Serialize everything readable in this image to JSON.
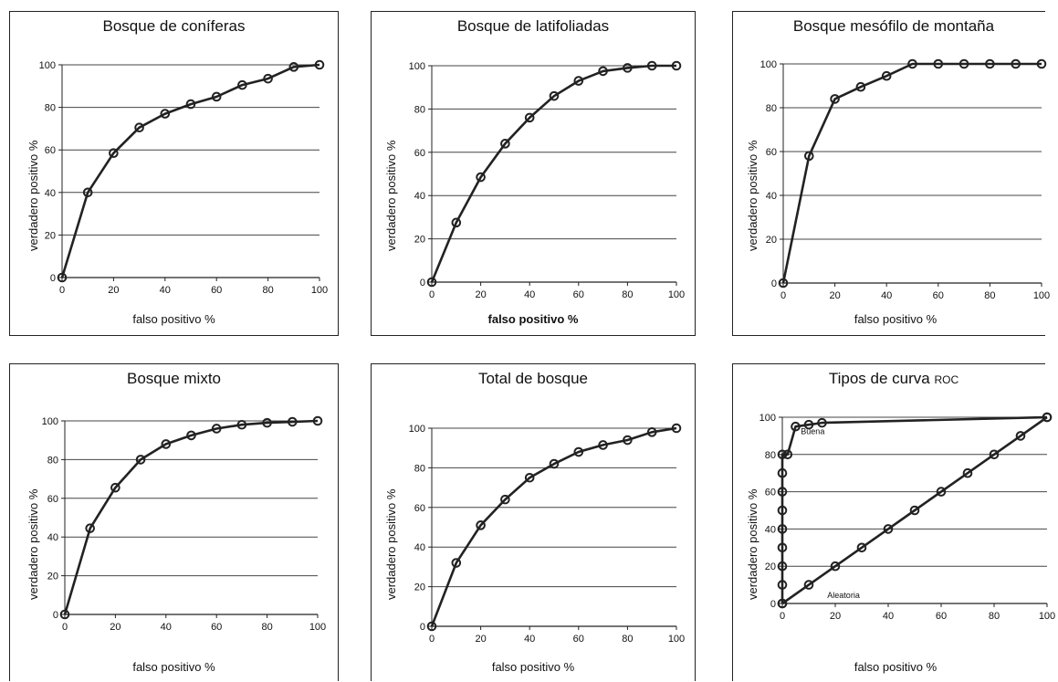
{
  "chart_data": [
    {
      "type": "line",
      "title": "Bosque de coníferas",
      "xlabel": "falso positivo %",
      "ylabel": "verdadero positivo %",
      "xlim": [
        0,
        100
      ],
      "ylim": [
        0,
        100
      ],
      "xticks": [
        "0",
        "20",
        "40",
        "60",
        "80",
        "100"
      ],
      "yticks": [
        "0",
        "20",
        "40",
        "60",
        "80",
        "100"
      ],
      "grid": "horizontal",
      "series": [
        {
          "x": [
            0,
            10,
            20,
            30,
            40,
            50,
            60,
            70,
            80,
            90,
            100
          ],
          "y": [
            0,
            40,
            58.5,
            70.5,
            77,
            81.5,
            85,
            90.5,
            93.5,
            99,
            100
          ]
        }
      ]
    },
    {
      "type": "line",
      "title": "Bosque de latifoliadas",
      "xlabel": "falso positivo %",
      "ylabel": "verdadero positivo %",
      "xlim": [
        0,
        100
      ],
      "ylim": [
        0,
        100
      ],
      "xticks": [
        "0",
        "20",
        "40",
        "60",
        "80",
        "100"
      ],
      "yticks": [
        "0",
        "20",
        "40",
        "60",
        "80",
        "100"
      ],
      "grid": "horizontal",
      "series": [
        {
          "x": [
            0,
            10,
            20,
            30,
            40,
            50,
            60,
            70,
            80,
            90,
            100
          ],
          "y": [
            0,
            27.5,
            48.5,
            64,
            76,
            86,
            93,
            97.5,
            99,
            100,
            100
          ]
        }
      ]
    },
    {
      "type": "line",
      "title": "Bosque mesófilo de montaña",
      "xlabel": "falso positivo %",
      "ylabel": "verdadero positivo %",
      "xlim": [
        0,
        100
      ],
      "ylim": [
        0,
        100
      ],
      "xticks": [
        "0",
        "20",
        "40",
        "60",
        "80",
        "100"
      ],
      "yticks": [
        "0",
        "20",
        "40",
        "60",
        "80",
        "100"
      ],
      "grid": "horizontal",
      "series": [
        {
          "x": [
            0,
            10,
            20,
            30,
            40,
            50,
            60,
            70,
            80,
            90,
            100
          ],
          "y": [
            0,
            58,
            84,
            89.5,
            94.5,
            100,
            100,
            100,
            100,
            100,
            100
          ]
        }
      ]
    },
    {
      "type": "line",
      "title": "Bosque mixto",
      "xlabel": "falso positivo %",
      "ylabel": "verdadero positivo %",
      "xlim": [
        0,
        100
      ],
      "ylim": [
        0,
        100
      ],
      "xticks": [
        "0",
        "20",
        "40",
        "60",
        "80",
        "100"
      ],
      "yticks": [
        "0",
        "20",
        "40",
        "60",
        "80",
        "100"
      ],
      "grid": "horizontal",
      "series": [
        {
          "x": [
            0,
            10,
            20,
            30,
            40,
            50,
            60,
            70,
            80,
            90,
            100
          ],
          "y": [
            0,
            44.5,
            65.5,
            80,
            88,
            92.5,
            96,
            98,
            99,
            99.5,
            100
          ]
        }
      ]
    },
    {
      "type": "line",
      "title": "Total de bosque",
      "xlabel": "falso positivo %",
      "ylabel": "verdadero positivo %",
      "xlim": [
        0,
        100
      ],
      "ylim": [
        0,
        100
      ],
      "xticks": [
        "0",
        "20",
        "40",
        "60",
        "80",
        "100"
      ],
      "yticks": [
        "0",
        "20",
        "40",
        "60",
        "80",
        "100"
      ],
      "grid": "horizontal",
      "series": [
        {
          "x": [
            0,
            10,
            20,
            30,
            40,
            50,
            60,
            70,
            80,
            90,
            100
          ],
          "y": [
            0,
            32,
            51,
            64,
            75,
            82,
            88,
            91.5,
            94,
            98,
            100
          ]
        }
      ]
    },
    {
      "type": "line",
      "title": "Tipos de curva",
      "title_suffix": "ROC",
      "xlabel": "falso positivo %",
      "ylabel": "verdadero positivo %",
      "xlim": [
        0,
        100
      ],
      "ylim": [
        0,
        100
      ],
      "xticks": [
        "0",
        "20",
        "40",
        "60",
        "80",
        "100"
      ],
      "yticks": [
        "0",
        "20",
        "40",
        "60",
        "80",
        "100"
      ],
      "grid": "horizontal",
      "annotations": [
        "Buena",
        "Aleatoria"
      ],
      "series": [
        {
          "name": "Buena",
          "x": [
            0,
            0,
            0,
            0,
            0,
            0,
            0,
            0,
            0,
            2,
            5,
            10,
            15,
            100
          ],
          "y": [
            0,
            10,
            20,
            30,
            40,
            50,
            60,
            70,
            80,
            80,
            95,
            96,
            97,
            100
          ]
        },
        {
          "name": "Aleatoria",
          "x": [
            0,
            10,
            20,
            30,
            40,
            50,
            60,
            70,
            80,
            90,
            100
          ],
          "y": [
            0,
            10,
            20,
            30,
            40,
            50,
            60,
            70,
            80,
            90,
            100
          ]
        }
      ]
    }
  ]
}
